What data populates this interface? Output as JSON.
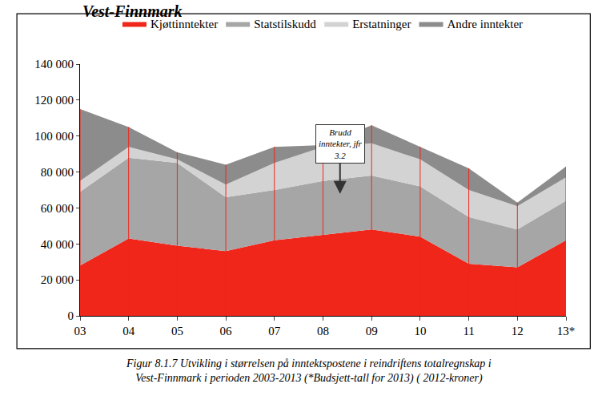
{
  "chart_data": {
    "type": "area",
    "title": "Vest-Finnmark",
    "caption": [
      "Figur 8.1.7 Utvikling i størrelsen på inntektspostene i reindriftens totalregnskap i",
      "Vest-Finnmark i perioden 2003-2013 (*Budsjett-tall for 2013) ( 2012-kroner)"
    ],
    "annotation": [
      "Brudd",
      "inntekter, jfr",
      "3.2"
    ],
    "categories": [
      "03",
      "04",
      "05",
      "06",
      "07",
      "08",
      "09",
      "10",
      "11",
      "12",
      "13*"
    ],
    "series": [
      {
        "name": "Kjøttinntekter",
        "color": "#f0261b",
        "values": [
          28000,
          43000,
          39000,
          36000,
          42000,
          45000,
          48000,
          44000,
          29000,
          27000,
          42000
        ]
      },
      {
        "name": "Statstilskudd",
        "color": "#a6a6a6",
        "values": [
          41000,
          45000,
          46000,
          30000,
          28000,
          30000,
          30000,
          28000,
          26000,
          21000,
          22000
        ]
      },
      {
        "name": "Erstatninger",
        "color": "#d3d3d3",
        "values": [
          6000,
          6000,
          2000,
          7000,
          15000,
          19000,
          18000,
          15000,
          15000,
          13000,
          13000
        ]
      },
      {
        "name": "Andre inntekter",
        "color": "#8c8c8c",
        "values": [
          40000,
          11000,
          4000,
          11000,
          9000,
          1000,
          10000,
          7000,
          12000,
          2000,
          6000
        ]
      }
    ],
    "stacked": true,
    "ylim": [
      0,
      140000
    ],
    "yticks": [
      0,
      {
        "value": 20000,
        "label": "20 000"
      },
      {
        "value": 40000,
        "label": "40 000"
      },
      {
        "value": 60000,
        "label": "60 000"
      },
      {
        "value": 80000,
        "label": "80 000"
      },
      {
        "value": 100000,
        "label": "100 000"
      },
      {
        "value": 120000,
        "label": "120 000"
      },
      {
        "value": 140000,
        "label": "140 000"
      }
    ],
    "grid": false,
    "legend": "top"
  }
}
